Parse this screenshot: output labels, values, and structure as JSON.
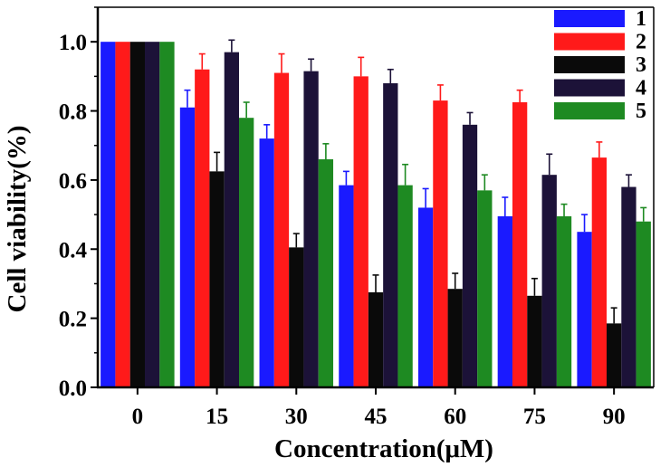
{
  "chart_data": {
    "type": "bar",
    "title": "",
    "xlabel": "Concentration(μM)",
    "ylabel": "Cell viability(%)",
    "categories": [
      "0",
      "15",
      "30",
      "45",
      "60",
      "75",
      "90"
    ],
    "ylim": [
      0,
      1.1
    ],
    "yticks": [
      "0.0",
      "0.2",
      "0.4",
      "0.6",
      "0.8",
      "1.0"
    ],
    "legend_position": "top-right",
    "series": [
      {
        "name": "1",
        "color": "#1a1aff",
        "values": [
          1.0,
          0.81,
          0.72,
          0.585,
          0.52,
          0.495,
          0.45
        ],
        "errors": [
          0.0,
          0.05,
          0.04,
          0.04,
          0.055,
          0.055,
          0.05
        ]
      },
      {
        "name": "2",
        "color": "#ff1a1a",
        "values": [
          1.0,
          0.92,
          0.91,
          0.9,
          0.83,
          0.825,
          0.665
        ],
        "errors": [
          0.0,
          0.045,
          0.055,
          0.055,
          0.045,
          0.035,
          0.045
        ]
      },
      {
        "name": "3",
        "color": "#0a0a0a",
        "values": [
          1.0,
          0.625,
          0.405,
          0.275,
          0.285,
          0.265,
          0.185
        ],
        "errors": [
          0.0,
          0.055,
          0.04,
          0.05,
          0.045,
          0.05,
          0.045
        ]
      },
      {
        "name": "4",
        "color": "#1c1238",
        "values": [
          1.0,
          0.97,
          0.915,
          0.88,
          0.76,
          0.615,
          0.58
        ],
        "errors": [
          0.0,
          0.035,
          0.035,
          0.04,
          0.035,
          0.06,
          0.035
        ]
      },
      {
        "name": "5",
        "color": "#1e8a22",
        "values": [
          1.0,
          0.78,
          0.66,
          0.585,
          0.57,
          0.495,
          0.48
        ],
        "errors": [
          0.0,
          0.045,
          0.045,
          0.06,
          0.045,
          0.035,
          0.04
        ]
      }
    ]
  }
}
